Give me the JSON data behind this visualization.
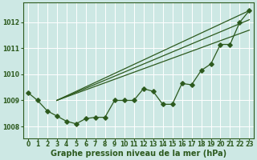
{
  "title": "Graphe pression niveau de la mer (hPa)",
  "bg_color": "#cde8e4",
  "grid_color": "#b0d8d2",
  "line_color": "#2d5a1e",
  "xlim": [
    -0.5,
    23.5
  ],
  "ylim": [
    1007.55,
    1012.75
  ],
  "hours": [
    0,
    1,
    2,
    3,
    4,
    5,
    6,
    7,
    8,
    9,
    10,
    11,
    12,
    13,
    14,
    15,
    16,
    17,
    18,
    19,
    20,
    21,
    22,
    23
  ],
  "pressure_main": [
    1009.3,
    1009.0,
    1008.6,
    1008.4,
    1008.2,
    1008.1,
    1008.3,
    1008.35,
    1008.35,
    1009.0,
    1009.0,
    1009.0,
    1009.45,
    1009.35,
    1008.85,
    1008.85,
    1009.65,
    1009.6,
    1010.15,
    1010.4,
    1011.15,
    1011.15,
    1012.0,
    1012.45
  ],
  "straight_line1_x": [
    3,
    23
  ],
  "straight_line1_y": [
    1009.0,
    1012.45
  ],
  "straight_line2_x": [
    3,
    23
  ],
  "straight_line2_y": [
    1009.0,
    1012.1
  ],
  "straight_line3_x": [
    3,
    23
  ],
  "straight_line3_y": [
    1009.0,
    1011.7
  ],
  "yticks": [
    1008,
    1009,
    1010,
    1011,
    1012
  ],
  "xticks": [
    0,
    1,
    2,
    3,
    4,
    5,
    6,
    7,
    8,
    9,
    10,
    11,
    12,
    13,
    14,
    15,
    16,
    17,
    18,
    19,
    20,
    21,
    22,
    23
  ],
  "title_fontsize": 7,
  "tick_fontsize": 5.5
}
